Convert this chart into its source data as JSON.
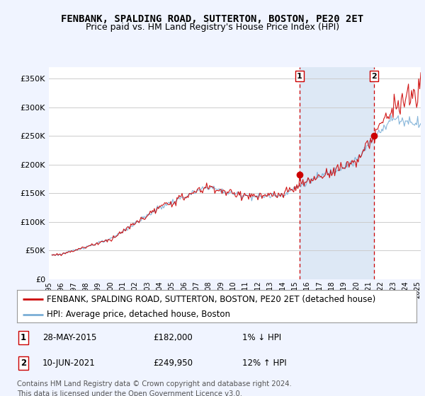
{
  "title": "FENBANK, SPALDING ROAD, SUTTERTON, BOSTON, PE20 2ET",
  "subtitle": "Price paid vs. HM Land Registry's House Price Index (HPI)",
  "ylabel_ticks": [
    "£0",
    "£50K",
    "£100K",
    "£150K",
    "£200K",
    "£250K",
    "£300K",
    "£350K"
  ],
  "ytick_values": [
    0,
    50000,
    100000,
    150000,
    200000,
    250000,
    300000,
    350000
  ],
  "ylim": [
    0,
    370000
  ],
  "xlim_start": 1995.25,
  "xlim_end": 2025.25,
  "sale1": {
    "date_num": 2015.38,
    "price": 182000,
    "label": "1",
    "date_str": "28-MAY-2015",
    "price_str": "£182,000",
    "hpi_str": "1% ↓ HPI"
  },
  "sale2": {
    "date_num": 2021.44,
    "price": 249950,
    "label": "2",
    "date_str": "10-JUN-2021",
    "price_str": "£249,950",
    "hpi_str": "12% ↑ HPI"
  },
  "legend_line1": "FENBANK, SPALDING ROAD, SUTTERTON, BOSTON, PE20 2ET (detached house)",
  "legend_line2": "HPI: Average price, detached house, Boston",
  "footer": "Contains HM Land Registry data © Crown copyright and database right 2024.\nThis data is licensed under the Open Government Licence v3.0.",
  "line_color_price": "#cc0000",
  "line_color_hpi": "#7aaed6",
  "marker_color": "#cc0000",
  "vline_color": "#cc0000",
  "shade_color": "#dde8f5",
  "background_color": "#f0f4ff",
  "plot_bg": "#ffffff",
  "grid_color": "#cccccc",
  "title_fontsize": 10,
  "subtitle_fontsize": 9,
  "tick_fontsize": 8,
  "legend_fontsize": 8.5,
  "footer_fontsize": 7.2
}
